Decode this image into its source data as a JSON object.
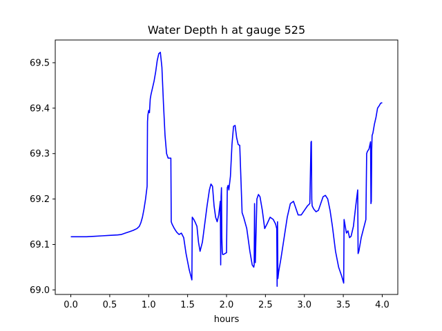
{
  "chart_data": {
    "type": "line",
    "title": "Water Depth h at gauge 525",
    "xlabel": "hours",
    "ylabel": "",
    "xlim": [
      -0.2,
      4.2
    ],
    "ylim": [
      68.99,
      69.55
    ],
    "xticks": [
      0.0,
      0.5,
      1.0,
      1.5,
      2.0,
      2.5,
      3.0,
      3.5,
      4.0
    ],
    "xtick_labels": [
      "0.0",
      "0.5",
      "1.0",
      "1.5",
      "2.0",
      "2.5",
      "3.0",
      "3.5",
      "4.0"
    ],
    "yticks": [
      69.0,
      69.1,
      69.2,
      69.3,
      69.4,
      69.5
    ],
    "ytick_labels": [
      "69.0",
      "69.1",
      "69.2",
      "69.3",
      "69.4",
      "69.5"
    ],
    "grid": false,
    "series": [
      {
        "color": "#0000ff",
        "x": [
          0.0,
          0.1,
          0.2,
          0.3,
          0.4,
          0.5,
          0.6,
          0.65,
          0.7,
          0.75,
          0.8,
          0.85,
          0.88,
          0.9,
          0.92,
          0.94,
          0.96,
          0.98,
          0.985,
          0.99,
          1.0,
          1.01,
          1.02,
          1.025,
          1.03,
          1.05,
          1.07,
          1.09,
          1.11,
          1.13,
          1.15,
          1.17,
          1.19,
          1.21,
          1.23,
          1.25,
          1.27,
          1.285,
          1.29,
          1.3,
          1.33,
          1.36,
          1.39,
          1.42,
          1.45,
          1.48,
          1.52,
          1.555,
          1.56,
          1.58,
          1.6,
          1.62,
          1.64,
          1.66,
          1.69,
          1.72,
          1.75,
          1.78,
          1.8,
          1.82,
          1.84,
          1.86,
          1.88,
          1.9,
          1.92,
          1.925,
          1.93,
          1.935,
          1.94,
          1.945,
          1.95,
          1.96,
          1.98,
          2.0,
          2.01,
          2.02,
          2.03,
          2.05,
          2.07,
          2.09,
          2.11,
          2.13,
          2.15,
          2.17,
          2.2,
          2.21,
          2.22,
          2.26,
          2.3,
          2.33,
          2.35,
          2.355,
          2.36,
          2.365,
          2.37,
          2.39,
          2.41,
          2.43,
          2.46,
          2.49,
          2.52,
          2.56,
          2.6,
          2.63,
          2.645,
          2.65,
          2.655,
          2.66,
          2.67,
          2.7,
          2.74,
          2.78,
          2.82,
          2.86,
          2.88,
          2.92,
          2.96,
          3.0,
          3.04,
          3.07,
          3.085,
          3.09,
          3.095,
          3.1,
          3.12,
          3.15,
          3.18,
          3.21,
          3.24,
          3.27,
          3.3,
          3.33,
          3.36,
          3.4,
          3.44,
          3.48,
          3.505,
          3.51,
          3.52,
          3.54,
          3.56,
          3.58,
          3.6,
          3.63,
          3.66,
          3.685,
          3.69,
          3.7,
          3.73,
          3.76,
          3.79,
          3.8,
          3.81,
          3.83,
          3.85,
          3.855,
          3.86,
          3.865,
          3.87,
          3.88,
          3.9,
          3.92,
          3.94,
          3.96,
          3.98,
          4.0
        ],
        "y": [
          69.117,
          69.117,
          69.117,
          69.118,
          69.119,
          69.12,
          69.121,
          69.122,
          69.125,
          69.128,
          69.131,
          69.135,
          69.14,
          69.148,
          69.16,
          69.178,
          69.2,
          69.228,
          69.37,
          69.385,
          69.395,
          69.39,
          69.42,
          69.425,
          69.43,
          69.445,
          69.46,
          69.48,
          69.505,
          69.52,
          69.523,
          69.49,
          69.41,
          69.34,
          69.3,
          69.29,
          69.29,
          69.29,
          69.15,
          69.145,
          69.135,
          69.127,
          69.122,
          69.125,
          69.115,
          69.08,
          69.045,
          69.022,
          69.16,
          69.155,
          69.148,
          69.14,
          69.105,
          69.085,
          69.105,
          69.145,
          69.185,
          69.22,
          69.233,
          69.228,
          69.185,
          69.16,
          69.15,
          69.165,
          69.195,
          69.055,
          69.205,
          69.225,
          69.115,
          69.085,
          69.078,
          69.078,
          69.08,
          69.082,
          69.225,
          69.23,
          69.22,
          69.25,
          69.32,
          69.36,
          69.362,
          69.335,
          69.32,
          69.318,
          69.17,
          69.165,
          69.16,
          69.135,
          69.085,
          69.055,
          69.05,
          69.055,
          69.19,
          69.09,
          69.06,
          69.2,
          69.21,
          69.205,
          69.175,
          69.135,
          69.145,
          69.16,
          69.155,
          69.145,
          69.135,
          69.008,
          69.15,
          69.025,
          69.04,
          69.07,
          69.115,
          69.16,
          69.19,
          69.195,
          69.185,
          69.165,
          69.165,
          69.175,
          69.185,
          69.19,
          69.325,
          69.327,
          69.2,
          69.185,
          69.178,
          69.172,
          69.175,
          69.19,
          69.205,
          69.208,
          69.2,
          69.175,
          69.14,
          69.085,
          69.05,
          69.03,
          69.015,
          69.155,
          69.145,
          69.125,
          69.13,
          69.115,
          69.118,
          69.14,
          69.185,
          69.22,
          69.08,
          69.085,
          69.115,
          69.135,
          69.155,
          69.3,
          69.305,
          69.31,
          69.326,
          69.19,
          69.195,
          69.31,
          69.34,
          69.345,
          69.365,
          69.38,
          69.4,
          69.405,
          69.411,
          69.412
        ]
      }
    ]
  }
}
